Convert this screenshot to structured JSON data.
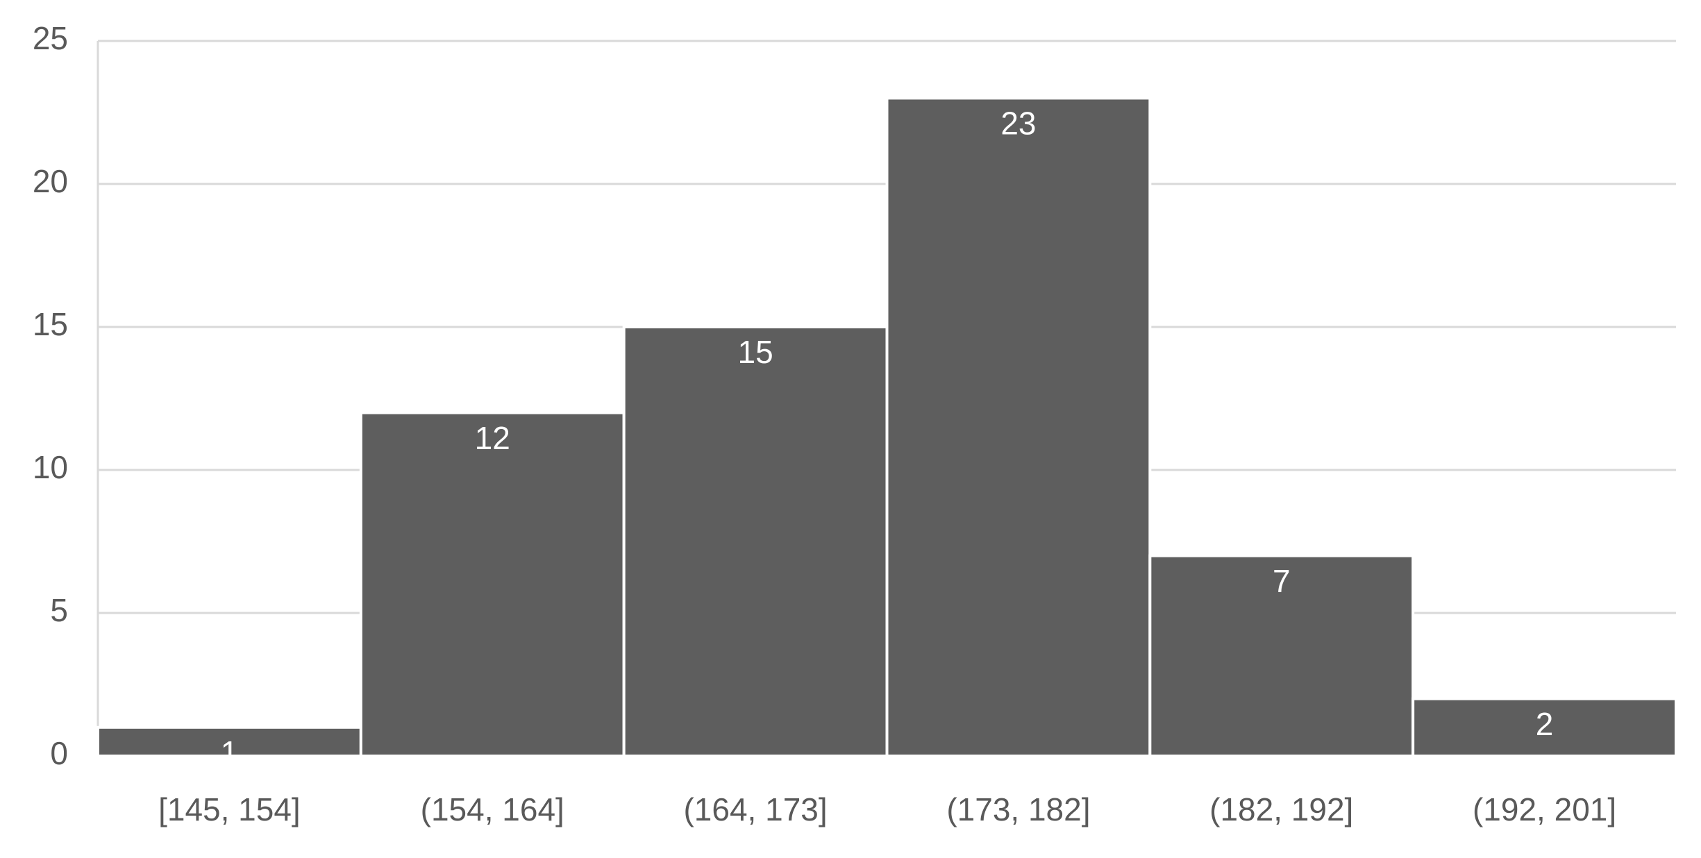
{
  "chart_data": {
    "type": "bar",
    "categories": [
      "[145, 154]",
      "(154, 164]",
      "(164, 173]",
      "(173, 182]",
      "(182, 192]",
      "(192, 201]"
    ],
    "values": [
      1,
      12,
      15,
      23,
      7,
      2
    ],
    "color": "#5e5e5e",
    "ylim": [
      0,
      25
    ],
    "yticks": [
      0,
      5,
      10,
      15,
      20,
      25
    ],
    "grid": true
  }
}
